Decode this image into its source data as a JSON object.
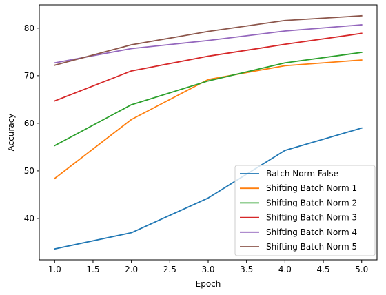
{
  "chart_data": {
    "type": "line",
    "title": "",
    "xlabel": "Epoch",
    "ylabel": "Accuracy",
    "x": [
      1,
      2,
      3,
      4,
      5
    ],
    "xlim": [
      0.8,
      5.2
    ],
    "ylim": [
      31.3,
      84.9
    ],
    "xticks": [
      1.0,
      1.5,
      2.0,
      2.5,
      3.0,
      3.5,
      4.0,
      4.5,
      5.0
    ],
    "xtick_labels": [
      "1.0",
      "1.5",
      "2.0",
      "2.5",
      "3.0",
      "3.5",
      "4.0",
      "4.5",
      "5.0"
    ],
    "yticks": [
      40,
      50,
      60,
      70,
      80
    ],
    "ytick_labels": [
      "40",
      "50",
      "60",
      "70",
      "80"
    ],
    "grid": false,
    "legend_position": "lower-right",
    "series": [
      {
        "name": "Batch Norm False",
        "color": "#1f77b4",
        "values": [
          33.6,
          37.0,
          44.3,
          54.3,
          59.0
        ]
      },
      {
        "name": "Shifting Batch Norm 1",
        "color": "#ff7f0e",
        "values": [
          48.4,
          60.8,
          69.2,
          72.1,
          73.3
        ]
      },
      {
        "name": "Shifting Batch Norm 2",
        "color": "#2ca02c",
        "values": [
          55.3,
          63.9,
          68.9,
          72.7,
          74.9
        ]
      },
      {
        "name": "Shifting Batch Norm 3",
        "color": "#d62728",
        "values": [
          64.7,
          71.0,
          74.1,
          76.6,
          78.9
        ]
      },
      {
        "name": "Shifting Batch Norm 4",
        "color": "#9467bd",
        "values": [
          72.7,
          75.7,
          77.4,
          79.4,
          80.7
        ]
      },
      {
        "name": "Shifting Batch Norm 5",
        "color": "#8c564b",
        "values": [
          72.2,
          76.5,
          79.3,
          81.6,
          82.6
        ]
      }
    ]
  }
}
